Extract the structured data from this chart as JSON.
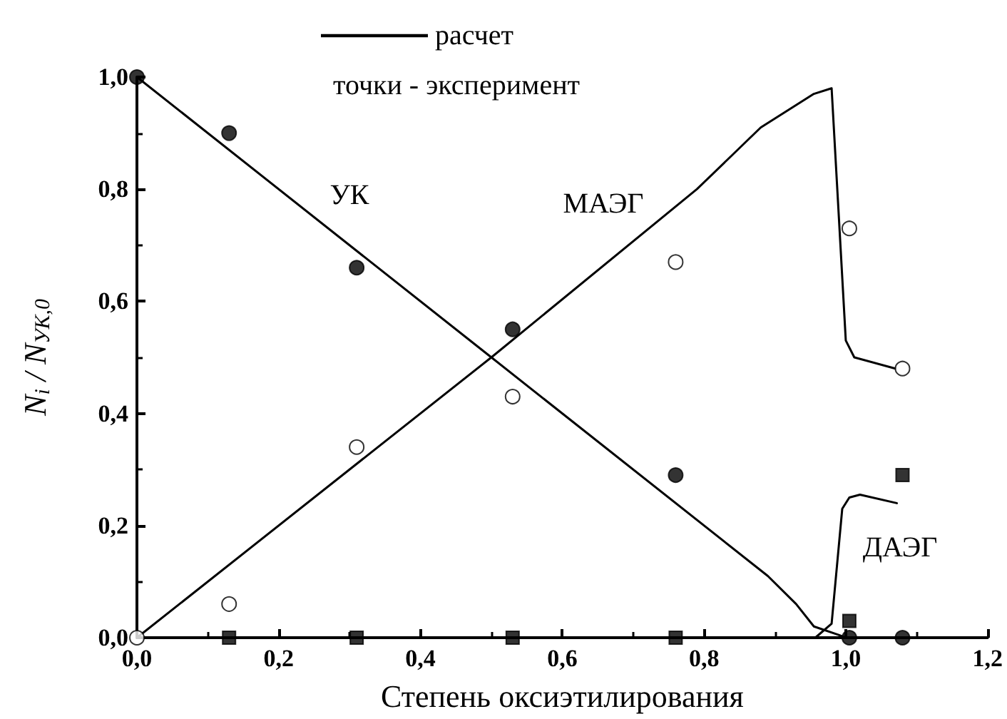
{
  "chart_data": {
    "type": "line",
    "xlabel": "Степень оксиэтилирования",
    "ylabel": "N$_{i}$ / N$_{УК,0}$",
    "xlim": [
      0,
      1.2
    ],
    "ylim": [
      0,
      1.0
    ],
    "xticks": [
      {
        "value": 0,
        "label": "0,0"
      },
      {
        "value": 0.2,
        "label": "0,2"
      },
      {
        "value": 0.4,
        "label": "0,4"
      },
      {
        "value": 0.6,
        "label": "0,6"
      },
      {
        "value": 0.8,
        "label": "0,8"
      },
      {
        "value": 1.0,
        "label": "1,0"
      },
      {
        "value": 1.2,
        "label": "1,2"
      }
    ],
    "yticks": [
      {
        "value": 0,
        "label": "0,0"
      },
      {
        "value": 0.2,
        "label": "0,2"
      },
      {
        "value": 0.4,
        "label": "0,4"
      },
      {
        "value": 0.6,
        "label": "0,6"
      },
      {
        "value": 0.8,
        "label": "0,8"
      },
      {
        "value": 1.0,
        "label": "1,0"
      }
    ],
    "grid": false,
    "legend": "top",
    "line_style": "solid",
    "annotations": [
      "точки - эксперимент",
      "УК",
      "МАЭГ",
      "ДАЭГ"
    ],
    "series": [
      {
        "name": "расчет",
        "color": "#000000",
        "marker": "none",
        "x": [
          0,
          0.5,
          0.89,
          0.93,
          0.955,
          0.99,
          1.0,
          null,
          0,
          0.5,
          0.79,
          0.88,
          0.93,
          0.955,
          0.98,
          1.0,
          1.012,
          1.07,
          null,
          0.957,
          0.98,
          0.995,
          1.005,
          1.02,
          1.072
        ],
        "values": [
          1,
          0.5,
          0.11,
          0.06,
          0.02,
          0.005,
          0,
          null,
          0,
          0.5,
          0.8,
          0.91,
          0.95,
          0.97,
          0.98,
          0.53,
          0.5,
          0.48,
          null,
          0,
          0.025,
          0.23,
          0.25,
          0.255,
          0.24
        ]
      },
      {
        "type": "scatter",
        "color": "#000000",
        "marker": "circle",
        "x": [
          0,
          0.13,
          0.31,
          0.53,
          0.76,
          1.005,
          1.08
        ],
        "values": [
          1,
          0.9,
          0.66,
          0.55,
          0.29,
          0,
          0
        ]
      },
      {
        "type": "scatter",
        "color": "#ffffff",
        "marker": "circle",
        "x": [
          0,
          0.13,
          0.31,
          0.53,
          0.76,
          1.005,
          1.08
        ],
        "values": [
          0,
          0.06,
          0.34,
          0.43,
          0.67,
          0.73,
          0.48
        ]
      },
      {
        "type": "scatter",
        "color": "#000000",
        "marker": "square",
        "x": [
          0.13,
          0.31,
          0.53,
          0.76,
          1.005,
          1.08
        ],
        "values": [
          0,
          0,
          0,
          0,
          0.03,
          0.29
        ]
      }
    ]
  }
}
